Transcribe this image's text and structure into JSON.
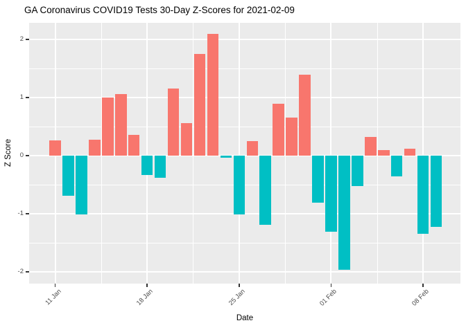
{
  "title": "GA Coronavirus COVID19 Tests 30-Day Z-Scores for 2021-02-09",
  "colors": {
    "positive_bar": "#F8766D",
    "negative_bar": "#00BFC4",
    "panel_background": "#EBEBEB",
    "gridline": "#FFFFFF",
    "axis_text": "#4D4D4D",
    "tick_mark": "#333333",
    "title_text": "#000000"
  },
  "chart_data": {
    "type": "bar",
    "title": "GA Coronavirus COVID19 Tests 30-Day Z-Scores for 2021-02-09",
    "xlabel": "Date",
    "ylabel": "Z Score",
    "ylim": [
      -2.2,
      2.2
    ],
    "grid": true,
    "legend": "none",
    "bar_color_rule": "positive values salmon #F8766D, negative values teal #00BFC4",
    "categories": [
      "11 Jan",
      "12 Jan",
      "13 Jan",
      "14 Jan",
      "15 Jan",
      "16 Jan",
      "17 Jan",
      "18 Jan",
      "19 Jan",
      "20 Jan",
      "21 Jan",
      "22 Jan",
      "23 Jan",
      "24 Jan",
      "25 Jan",
      "26 Jan",
      "27 Jan",
      "28 Jan",
      "29 Jan",
      "30 Jan",
      "31 Jan",
      "01 Feb",
      "02 Feb",
      "03 Feb",
      "04 Feb",
      "05 Feb",
      "06 Feb",
      "07 Feb",
      "08 Feb",
      "09 Feb"
    ],
    "values": [
      0.26,
      -0.69,
      -1.01,
      0.27,
      1.0,
      1.06,
      0.36,
      -0.33,
      -0.38,
      1.16,
      0.56,
      1.75,
      2.1,
      -0.03,
      -1.01,
      0.25,
      -1.19,
      0.89,
      0.66,
      1.39,
      -0.81,
      -1.31,
      -1.97,
      -0.52,
      0.32,
      0.09,
      -0.36,
      0.12,
      -1.35,
      -1.23
    ],
    "x_tick_labels": [
      "11 Jan",
      "18 Jan",
      "25 Jan",
      "01 Feb",
      "08 Feb"
    ],
    "x_tick_day_indices": [
      0,
      7,
      14,
      21,
      28
    ],
    "x_minor_day_indices": [
      3.5,
      10.5,
      17.5,
      24.5
    ],
    "y_tick_labels": [
      "2",
      "1",
      "0",
      "-1",
      "-2"
    ],
    "y_tick_values": [
      2,
      1,
      0,
      -1,
      -2
    ],
    "y_minor_values": [
      1.5,
      0.5,
      -0.5,
      -1.5
    ]
  }
}
